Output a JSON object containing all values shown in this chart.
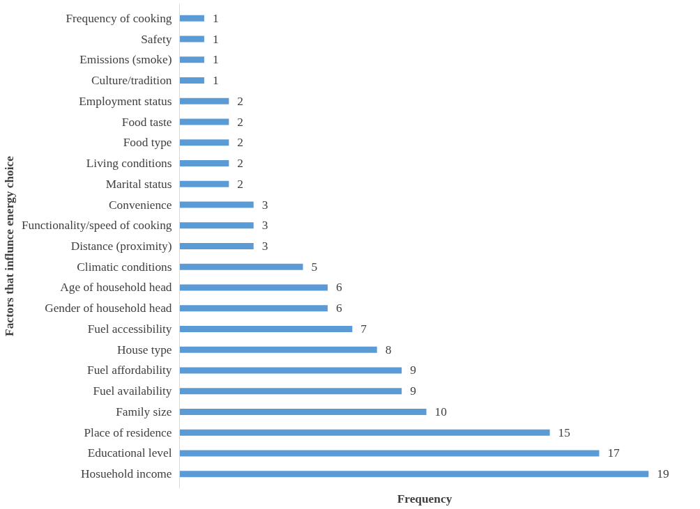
{
  "chart_data": {
    "type": "bar",
    "orientation": "horizontal",
    "xlabel": "Frequency",
    "ylabel": "Factors that influnce energy choice",
    "categories": [
      "Frequency of cooking",
      "Safety",
      "Emissions (smoke)",
      "Culture/tradition",
      "Employment status",
      "Food taste",
      "Food type",
      "Living conditions",
      "Marital status",
      "Convenience",
      "Functionality/speed of cooking",
      "Distance (proximity)",
      "Climatic conditions",
      "Age of household head",
      "Gender of household head",
      "Fuel accessibility",
      "House type",
      "Fuel affordability",
      "Fuel availability",
      "Family size",
      "Place of residence",
      "Educational level",
      "Hosuehold income"
    ],
    "values": [
      1,
      1,
      1,
      1,
      2,
      2,
      2,
      2,
      2,
      3,
      3,
      3,
      5,
      6,
      6,
      7,
      8,
      9,
      9,
      10,
      15,
      17,
      19
    ],
    "color": "#5b9bd5",
    "data_labels": true,
    "tick_labels": "y",
    "grid": false
  }
}
